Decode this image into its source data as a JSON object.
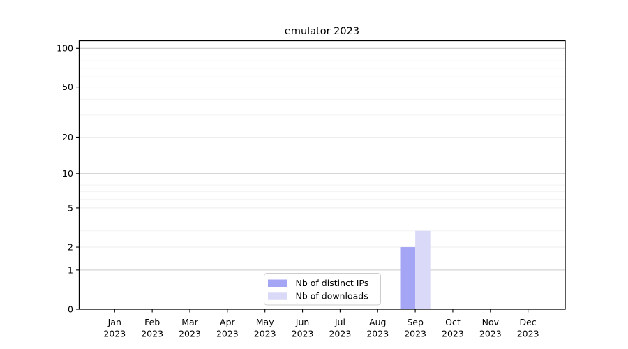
{
  "chart_data": {
    "type": "bar",
    "title": "emulator 2023",
    "categories": [
      "Jan 2023",
      "Feb 2023",
      "Mar 2023",
      "Apr 2023",
      "May 2023",
      "Jun 2023",
      "Jul 2023",
      "Aug 2023",
      "Sep 2023",
      "Oct 2023",
      "Nov 2023",
      "Dec 2023"
    ],
    "series": [
      {
        "name": "Nb of distinct IPs",
        "color": "#a5a5f5",
        "values": [
          0,
          0,
          0,
          0,
          0,
          0,
          0,
          0,
          2,
          0,
          0,
          0
        ]
      },
      {
        "name": "Nb of downloads",
        "color": "#dadaf8",
        "values": [
          0,
          0,
          0,
          0,
          0,
          0,
          0,
          0,
          3,
          0,
          0,
          0
        ]
      }
    ],
    "xlabel": "",
    "ylabel": "",
    "yscale": "log1p",
    "yticks": [
      0,
      1,
      2,
      5,
      10,
      20,
      50,
      100
    ],
    "ylim": [
      0,
      115
    ],
    "grid": "horizontal",
    "legend_position": "lower-center",
    "colors": {
      "major_grid": "#c9c9c9",
      "labeled_grid": "#ededed",
      "minor_grid": "#f2f2f2",
      "spine": "#000000",
      "text": "#000000",
      "legend_border": "#cccccc",
      "background": "#ffffff"
    }
  }
}
